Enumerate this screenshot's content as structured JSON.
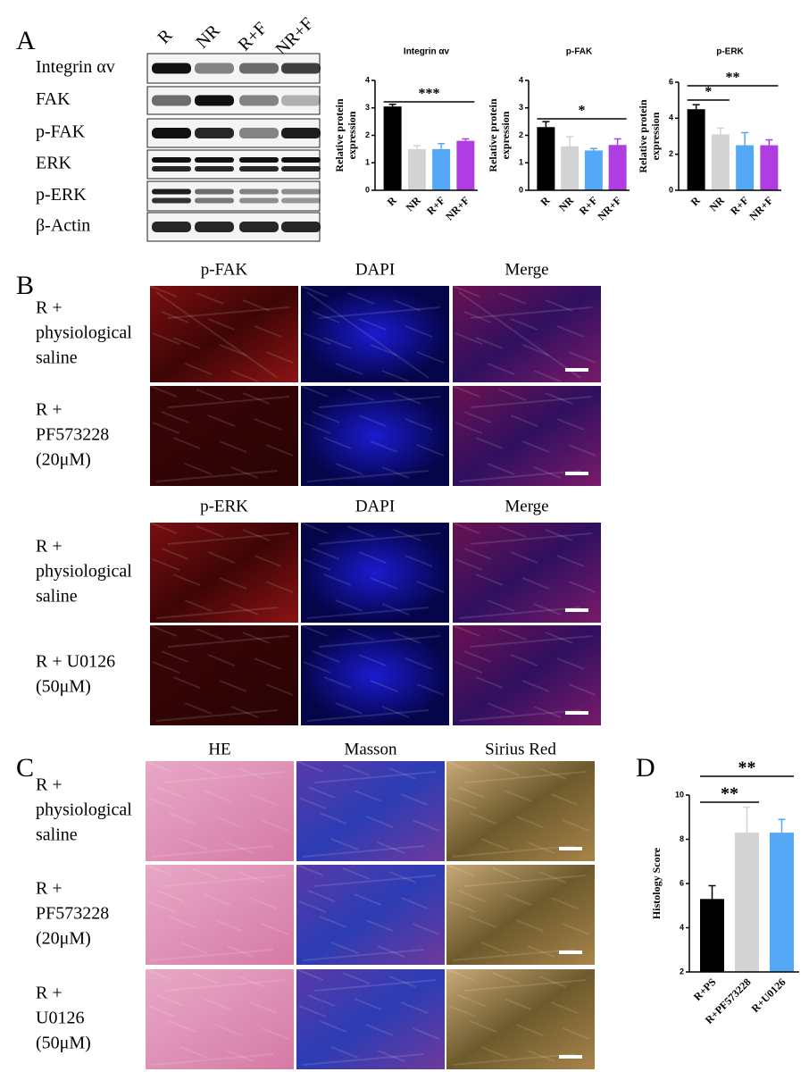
{
  "panel_labels": [
    "A",
    "B",
    "C",
    "D"
  ],
  "blot": {
    "lanes": [
      "R",
      "NR",
      "R+F",
      "NR+F"
    ],
    "proteins": [
      "Integrin αv",
      "FAK",
      "p-FAK",
      "ERK",
      "p-ERK",
      "β-Actin"
    ]
  },
  "if_fak": {
    "columns": [
      "p-FAK",
      "DAPI",
      "Merge"
    ],
    "rows": [
      [
        "R +",
        "physiological",
        "saline"
      ],
      [
        "R +",
        "PF573228",
        "(20μM)"
      ]
    ]
  },
  "if_erk": {
    "columns": [
      "p-ERK",
      "DAPI",
      "Merge"
    ],
    "rows": [
      [
        "R +",
        "physiological",
        "saline"
      ],
      [
        "R + U0126",
        "(50μM)"
      ]
    ]
  },
  "histology": {
    "columns": [
      "HE",
      "Masson",
      "Sirius Red"
    ],
    "rows": [
      [
        "R +",
        "physiological",
        "saline"
      ],
      [
        "R +",
        "PF573228",
        "(20μM)"
      ],
      [
        "R +",
        "U0126",
        "(50μM)"
      ]
    ]
  },
  "chart_data": [
    {
      "type": "bar",
      "title": "Integrin αv",
      "y_label": [
        "Relative protein",
        "expression"
      ],
      "categories": [
        "R",
        "NR",
        "R+F",
        "NR+F"
      ],
      "values": [
        3.05,
        1.5,
        1.5,
        1.8
      ],
      "errors": [
        0.08,
        0.12,
        0.2,
        0.07
      ],
      "colors": [
        "#000000",
        "#d3d3d3",
        "#55a8f5",
        "#b03de2"
      ],
      "ylim": [
        0,
        4
      ],
      "yticks": [
        0,
        1,
        2,
        3,
        4
      ],
      "annotations": [
        "***"
      ]
    },
    {
      "type": "bar",
      "title": "p-FAK",
      "y_label": [
        "Relative protein",
        "expression"
      ],
      "categories": [
        "R",
        "NR",
        "R+F",
        "NR+F"
      ],
      "values": [
        2.3,
        1.6,
        1.45,
        1.65
      ],
      "errors": [
        0.2,
        0.35,
        0.07,
        0.22
      ],
      "colors": [
        "#000000",
        "#d3d3d3",
        "#55a8f5",
        "#b03de2"
      ],
      "ylim": [
        0,
        4
      ],
      "yticks": [
        0,
        1,
        2,
        3,
        4
      ],
      "annotations": [
        "*"
      ]
    },
    {
      "type": "bar",
      "title": "p-ERK",
      "y_label": [
        "Relative protein",
        "expression"
      ],
      "categories": [
        "R",
        "NR",
        "R+F",
        "NR+F"
      ],
      "values": [
        4.5,
        3.1,
        2.5,
        2.5
      ],
      "errors": [
        0.25,
        0.35,
        0.7,
        0.3
      ],
      "colors": [
        "#000000",
        "#d3d3d3",
        "#55a8f5",
        "#b03de2"
      ],
      "ylim": [
        0,
        6
      ],
      "yticks": [
        0,
        2,
        4,
        6
      ],
      "annotations": [
        "*",
        "**"
      ]
    },
    {
      "type": "bar",
      "y_label": [
        "Histology Score"
      ],
      "categories": [
        "R+PS",
        "R+PF573228",
        "R+U0126"
      ],
      "values": [
        5.3,
        8.3,
        8.3
      ],
      "errors": [
        0.6,
        1.15,
        0.6
      ],
      "colors": [
        "#000000",
        "#d3d3d3",
        "#55a8f5"
      ],
      "ylim": [
        2,
        10
      ],
      "yticks": [
        2,
        4,
        6,
        8,
        10
      ],
      "annotations": [
        "**",
        "**"
      ]
    }
  ]
}
